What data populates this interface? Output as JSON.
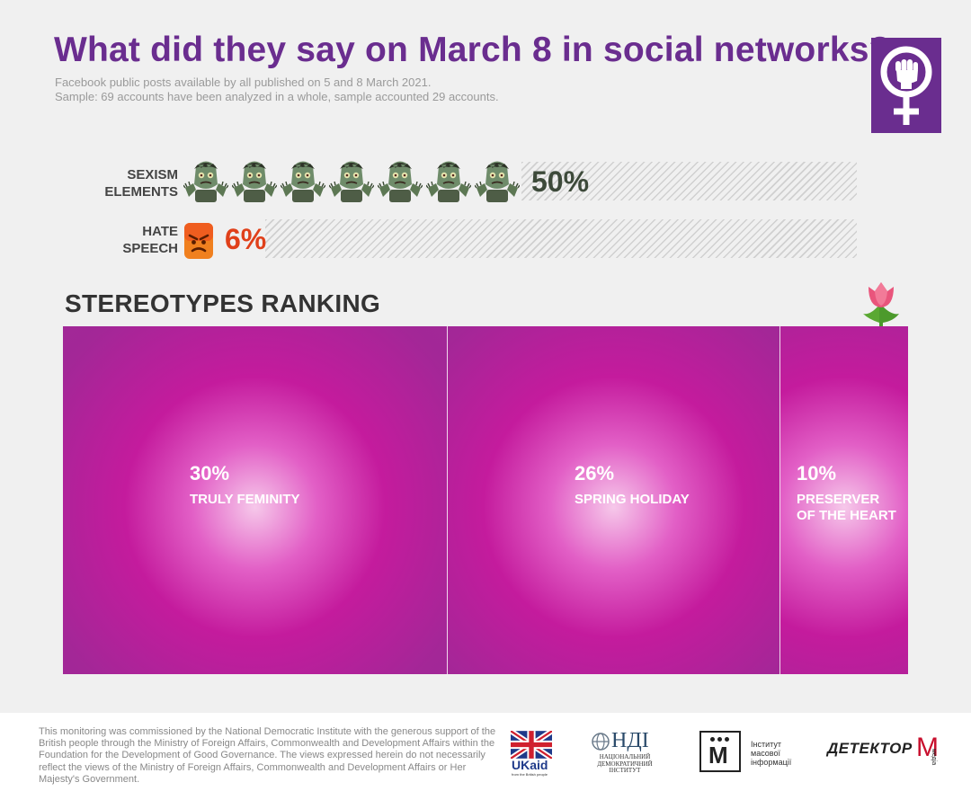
{
  "header": {
    "title": "What did they say on March 8 in social networks?",
    "subtitle_lines": [
      "Facebook public posts available by all published on 5 and 8 March 2021.",
      "Sample: 69 accounts have been analyzed in a whole, sample accounted 29 accounts."
    ],
    "logo_icon": "feminist-fist-symbol-icon"
  },
  "indicators": [
    {
      "label_lines": [
        "SEXISM",
        "ELEMENTS"
      ],
      "value": 50,
      "display": "50%",
      "icon": "zombie-icon",
      "icon_count": 7,
      "color": "#3d4a3a"
    },
    {
      "label_lines": [
        "HATE",
        "SPEECH"
      ],
      "value": 6,
      "display": "6%",
      "icon": "angry-face-icon",
      "icon_count": 1,
      "color": "#e0401a"
    }
  ],
  "ranking": {
    "title": "STEREOTYPES RANKING",
    "decoration_icon": "tulip-icon"
  },
  "chart_data": {
    "type": "treemap",
    "categories": [
      "TRULY FEMINITY",
      "SPRING HOLIDAY",
      "PRESERVER OF THE HEART"
    ],
    "values": [
      30,
      26,
      10
    ],
    "labels": [
      "30%",
      "26%",
      "10%"
    ],
    "label_lines": [
      [
        "TRULY FEMINITY"
      ],
      [
        "SPRING HOLIDAY"
      ],
      [
        "PRESERVER",
        "OF THE HEART"
      ]
    ],
    "colors": {
      "cell": "#a32797",
      "center": "#f6c8ea",
      "text": "#ffffff"
    }
  },
  "footer": {
    "disclaimer": "This monitoring was commissioned by the National Democratic Institute with the generous support of the British people through the Ministry of Foreign Affairs, Commonwealth and Development Affairs within the Foundation for the Development of Good Governance. The views expressed herein do not necessarily reflect the views of the Ministry of Foreign Affairs, Commonwealth and Development Affairs or Her Majesty's Government.",
    "partners": {
      "ukaid": {
        "flag_icon": "union-jack-icon",
        "name": "UKaid",
        "tagline": "from the British people"
      },
      "ndi": {
        "globe_icon": "globe-icon",
        "name": "НДІ",
        "lines": [
          "НАЦІОНАЛЬНИЙ",
          "ДЕМОКРАТИЧНИЙ",
          "ІНСТИТУТ"
        ]
      },
      "imi": {
        "letter": "М",
        "lines": [
          "Інститут",
          "масової",
          "інформації"
        ]
      },
      "detector": {
        "name": "ДЕТЕКТОР",
        "letter": "М",
        "suffix": "медіа"
      }
    }
  }
}
